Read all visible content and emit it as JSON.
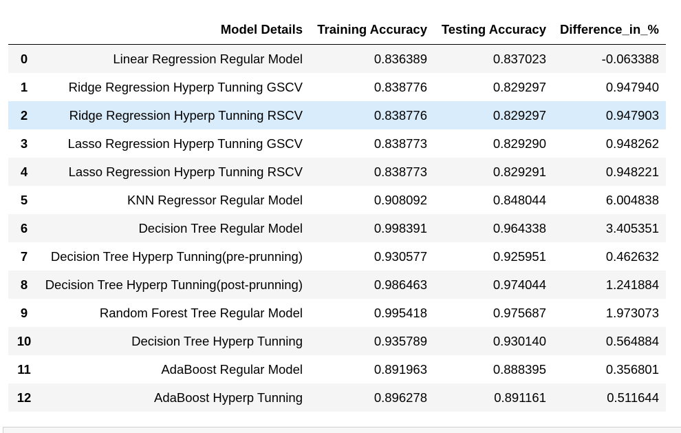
{
  "table": {
    "headers": [
      "",
      "Model Details",
      "Training Accuracy",
      "Testing Accuracy",
      "Difference_in_%"
    ],
    "highlighted_row": 2,
    "rows": [
      {
        "index": "0",
        "model": "Linear Regression Regular Model",
        "train": "0.836389",
        "test": "0.837023",
        "diff": "-0.063388"
      },
      {
        "index": "1",
        "model": "Ridge Regression Hyperp Tunning GSCV",
        "train": "0.838776",
        "test": "0.829297",
        "diff": "0.947940"
      },
      {
        "index": "2",
        "model": "Ridge Regression Hyperp Tunning RSCV",
        "train": "0.838776",
        "test": "0.829297",
        "diff": "0.947903"
      },
      {
        "index": "3",
        "model": "Lasso Regression Hyperp Tunning GSCV",
        "train": "0.838773",
        "test": "0.829290",
        "diff": "0.948262"
      },
      {
        "index": "4",
        "model": "Lasso Regression Hyperp Tunning RSCV",
        "train": "0.838773",
        "test": "0.829291",
        "diff": "0.948221"
      },
      {
        "index": "5",
        "model": "KNN Regressor Regular Model",
        "train": "0.908092",
        "test": "0.848044",
        "diff": "6.004838"
      },
      {
        "index": "6",
        "model": "Decision Tree Regular Model",
        "train": "0.998391",
        "test": "0.964338",
        "diff": "3.405351"
      },
      {
        "index": "7",
        "model": "Decision Tree Hyperp Tunning(pre-prunning)",
        "train": "0.930577",
        "test": "0.925951",
        "diff": "0.462632"
      },
      {
        "index": "8",
        "model": "Decision Tree Hyperp Tunning(post-prunning)",
        "train": "0.986463",
        "test": "0.974044",
        "diff": "1.241884"
      },
      {
        "index": "9",
        "model": "Random Forest Tree Regular Model",
        "train": "0.995418",
        "test": "0.975687",
        "diff": "1.973073"
      },
      {
        "index": "10",
        "model": "Decision Tree Hyperp Tunning",
        "train": "0.935789",
        "test": "0.930140",
        "diff": "0.564884"
      },
      {
        "index": "11",
        "model": "AdaBoost Regular Model",
        "train": "0.891963",
        "test": "0.888395",
        "diff": "0.356801"
      },
      {
        "index": "12",
        "model": "AdaBoost Hyperp Tunning",
        "train": "0.896278",
        "test": "0.891161",
        "diff": "0.511644"
      }
    ]
  },
  "colors": {
    "row_odd": "#f5f5f5",
    "row_even": "#ffffff",
    "row_hover": "#d9ecfb",
    "header_rule": "#000000"
  }
}
